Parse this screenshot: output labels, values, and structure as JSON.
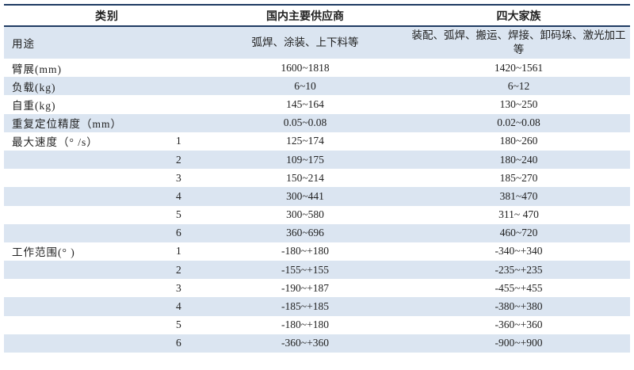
{
  "headers": [
    "类别",
    "国内主要供应商",
    "四大家族"
  ],
  "rows": [
    {
      "label": "用途",
      "sub": "",
      "domestic": "弧焊、涂装、上下料等",
      "big4": "装配、弧焊、搬运、焊接、卸码垛、激光加工等"
    },
    {
      "label": "臂展(mm)",
      "sub": "",
      "domestic": "1600~1818",
      "big4": "1420~1561"
    },
    {
      "label": "负载(kg)",
      "sub": "",
      "domestic": "6~10",
      "big4": "6~12"
    },
    {
      "label": "自重(kg)",
      "sub": "",
      "domestic": "145~164",
      "big4": "130~250"
    },
    {
      "label": "重复定位精度（mm）",
      "sub": "",
      "domestic": "0.05~0.08",
      "big4": "0.02~0.08"
    },
    {
      "label": "最大速度（° /s）",
      "sub": "1",
      "domestic": "125~174",
      "big4": "180~260"
    },
    {
      "label": "",
      "sub": "2",
      "domestic": "109~175",
      "big4": "180~240"
    },
    {
      "label": "",
      "sub": "3",
      "domestic": "150~214",
      "big4": "185~270"
    },
    {
      "label": "",
      "sub": "4",
      "domestic": "300~441",
      "big4": "381~470"
    },
    {
      "label": "",
      "sub": "5",
      "domestic": "300~580",
      "big4": "311~ 470"
    },
    {
      "label": "",
      "sub": "6",
      "domestic": "360~696",
      "big4": "460~720"
    },
    {
      "label": "工作范围(° )",
      "sub": "1",
      "domestic": "-180~+180",
      "big4": "-340~+340"
    },
    {
      "label": "",
      "sub": "2",
      "domestic": "-155~+155",
      "big4": "-235~+235"
    },
    {
      "label": "",
      "sub": "3",
      "domestic": "-190~+187",
      "big4": "-455~+455"
    },
    {
      "label": "",
      "sub": "4",
      "domestic": "-185~+185",
      "big4": "-380~+380"
    },
    {
      "label": "",
      "sub": "5",
      "domestic": "-180~+180",
      "big4": "-360~+360"
    },
    {
      "label": "",
      "sub": "6",
      "domestic": "-360~+360",
      "big4": "-900~+900"
    }
  ],
  "colors": {
    "band": "#dbe5f1",
    "rule": "#1f3b63"
  }
}
